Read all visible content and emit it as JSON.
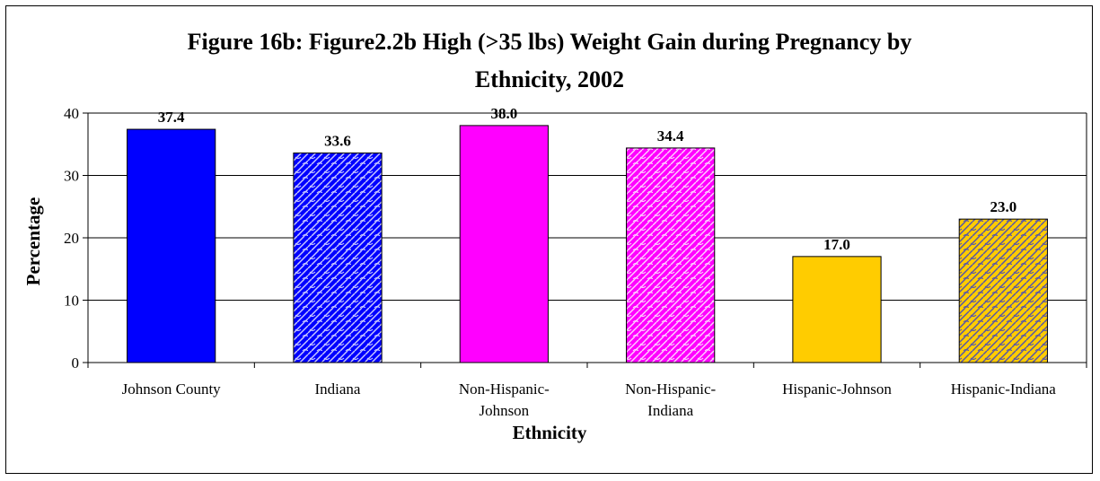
{
  "chart_data": {
    "type": "bar",
    "title_lines": [
      "Figure 16b: Figure2.2b High (>35 lbs) Weight Gain during Pregnancy by",
      "Ethnicity, 2002"
    ],
    "xlabel": "Ethnicity",
    "ylabel": "Percentage",
    "ylim": [
      0,
      40
    ],
    "yticks": [
      0,
      10,
      20,
      30,
      40
    ],
    "grid": true,
    "categories": [
      "Johnson County",
      "Indiana",
      "Non-Hispanic-Johnson",
      "Non-Hispanic-Indiana",
      "Hispanic-Johnson",
      "Hispanic-Indiana"
    ],
    "category_lines": [
      [
        "Johnson County"
      ],
      [
        "Indiana"
      ],
      [
        "Non-Hispanic-",
        "Johnson"
      ],
      [
        "Non-Hispanic-",
        "Indiana"
      ],
      [
        "Hispanic-Johnson"
      ],
      [
        "Hispanic-Indiana"
      ]
    ],
    "values": [
      37.4,
      33.6,
      38.0,
      34.4,
      17.0,
      23.0
    ],
    "value_labels": [
      "37.4",
      "33.6",
      "38.0",
      "34.4",
      "17.0",
      "23.0"
    ],
    "colors": [
      "#0000ff",
      "#0000ff",
      "#ff00ff",
      "#ff00ff",
      "#ffcc00",
      "#ffcc00"
    ],
    "patterned": [
      false,
      true,
      false,
      true,
      false,
      true
    ]
  }
}
